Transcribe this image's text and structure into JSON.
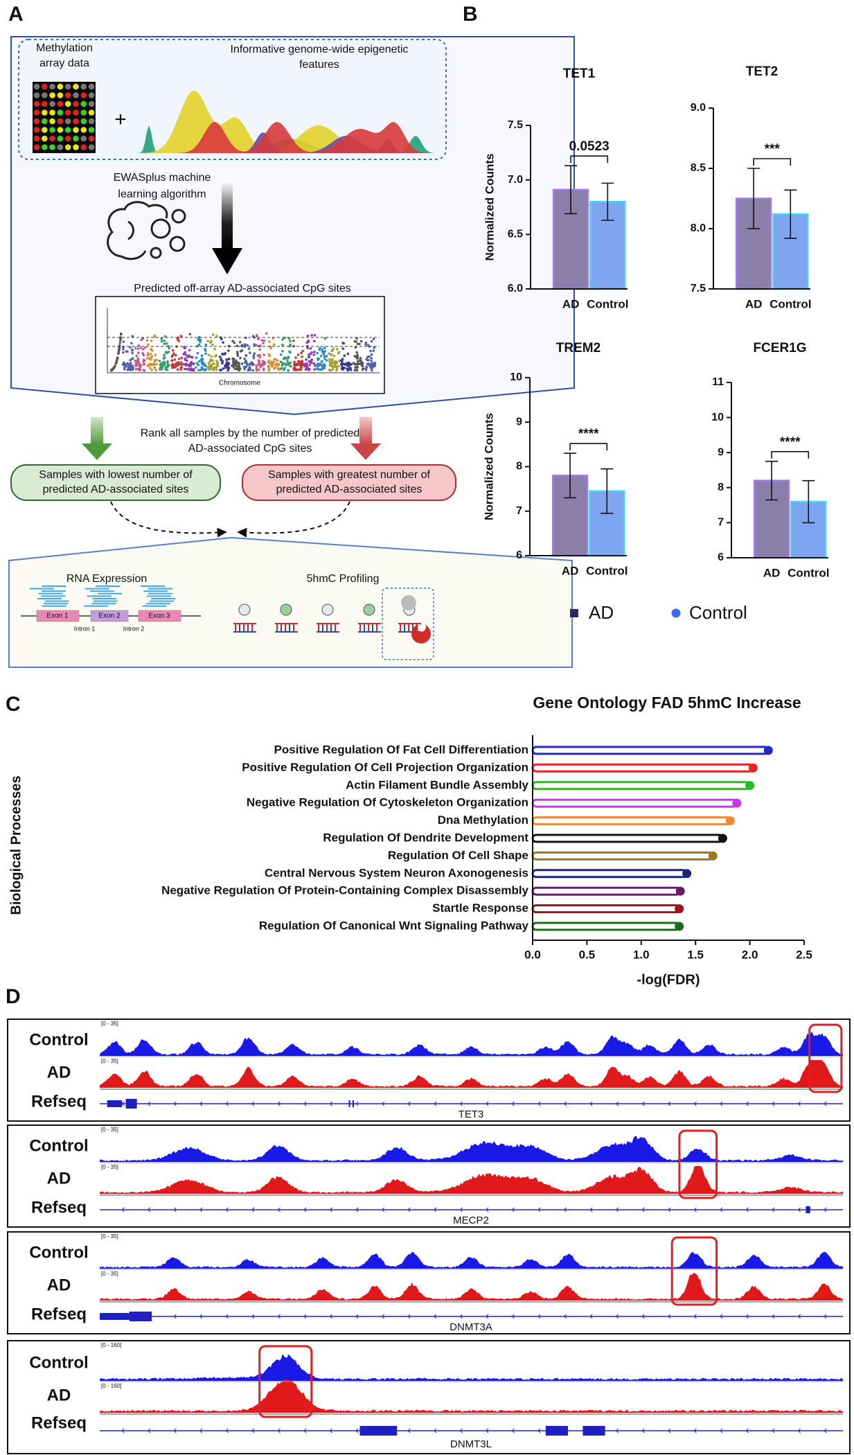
{
  "panel_labels": [
    "A",
    "B",
    "C",
    "D"
  ],
  "workflow": {
    "array_label": [
      "Methylation",
      "array data"
    ],
    "features_label": [
      "Informative genome-wide epigenetic",
      "features"
    ],
    "algorithm_label": [
      "EWASplus machine",
      "learning algorithm"
    ],
    "predicted_label": "Predicted off-array AD-associated CpG sites",
    "manhattan_xlabel": "Chromosome",
    "rank_label": [
      "Rank all samples by the number of predicted",
      "AD-associated CpG sites"
    ],
    "low_group": [
      "Samples with lowest number of",
      "predicted AD-associated sites"
    ],
    "high_group": [
      "Samples with greatest number of",
      "predicted AD-associated sites"
    ],
    "rna_label": "RNA Expression",
    "profiling_label": "5hmC Profiling",
    "exons": [
      "Exon 1",
      "Exon 2",
      "Exon 3"
    ],
    "introns": [
      "Intron 1",
      "Intron 2"
    ]
  },
  "legend": [
    {
      "name": "AD",
      "color": "#2d2766"
    },
    {
      "name": "Control",
      "color": "#3d6af0"
    }
  ],
  "chart_data": [
    {
      "type": "bar",
      "title": "TET1",
      "ylabel": "Normalized Counts",
      "categories": [
        "AD",
        "Control"
      ],
      "values": [
        6.91,
        6.8
      ],
      "errors": [
        0.22,
        0.17
      ],
      "colors": [
        "#8a7fa8",
        "#7fa4f0"
      ],
      "edge_colors": [
        "#a678e8",
        "#3fd9ef"
      ],
      "ylim": [
        6,
        7.5
      ],
      "yticks": [
        {
          "value": 6,
          "label": "6.0"
        },
        6.5,
        {
          "value": 7,
          "label": "7.0"
        },
        7.5
      ],
      "annotation": "0.0523"
    },
    {
      "type": "bar",
      "title": "TET2",
      "categories": [
        "AD",
        "Control"
      ],
      "values": [
        8.25,
        8.12
      ],
      "errors": [
        0.25,
        0.2
      ],
      "colors": [
        "#8a7fa8",
        "#7fa4f0"
      ],
      "edge_colors": [
        "#a678e8",
        "#3fd9ef"
      ],
      "ylim": [
        7.5,
        9
      ],
      "yticks": [
        7.5,
        {
          "value": 8,
          "label": "8.0"
        },
        8.5,
        {
          "value": 9,
          "label": "9.0"
        }
      ],
      "annotation": "***"
    },
    {
      "type": "bar",
      "title": "TREM2",
      "ylabel": "Normalized Counts",
      "categories": [
        "AD",
        "Control"
      ],
      "values": [
        7.8,
        7.45
      ],
      "errors": [
        0.5,
        0.5
      ],
      "colors": [
        "#8a7fa8",
        "#7fa4f0"
      ],
      "edge_colors": [
        "#a678e8",
        "#3fd9ef"
      ],
      "ylim": [
        6,
        10
      ],
      "yticks": [
        6,
        7,
        8,
        9,
        10
      ],
      "annotation": "****"
    },
    {
      "type": "bar",
      "title": "FCER1G",
      "categories": [
        "AD",
        "Control"
      ],
      "values": [
        8.2,
        7.6
      ],
      "errors": [
        0.55,
        0.6
      ],
      "colors": [
        "#8a7fa8",
        "#7fa4f0"
      ],
      "edge_colors": [
        "#a678e8",
        "#3fd9ef"
      ],
      "ylim": [
        6,
        11
      ],
      "yticks": [
        6,
        7,
        8,
        9,
        10,
        11
      ],
      "annotation": "****"
    },
    {
      "type": "lollipop",
      "title": "Gene Ontology FAD 5hmC Increase",
      "ylabel": "Biological Processes",
      "xlabel": "-log(FDR)",
      "categories": [
        "Positive Regulation Of Fat Cell Differentiation",
        "Positive Regulation Of Cell Projection Organization",
        "Actin Filament Bundle Assembly",
        "Negative Regulation Of Cytoskeleton Organization",
        "Dna Methylation",
        "Regulation Of Dendrite Development",
        "Regulation Of Cell Shape",
        "Central Nervous System Neuron Axonogenesis",
        "Negative Regulation Of Protein-Containing Complex Disassembly",
        "Startle Response",
        "Regulation Of Canonical Wnt Signaling Pathway"
      ],
      "values": [
        2.17,
        2.03,
        2.0,
        1.88,
        1.82,
        1.75,
        1.66,
        1.42,
        1.36,
        1.35,
        1.35
      ],
      "colors": [
        "#2525cc",
        "#ee2222",
        "#22bb22",
        "#cc33ee",
        "#ef8a33",
        "#111111",
        "#a0722a",
        "#1a237e",
        "#6a1b6a",
        "#a01020",
        "#1b6b1b"
      ],
      "xlim": [
        0,
        2.5
      ],
      "xticks": [
        {
          "value": 0,
          "label": "0.0"
        },
        0.5,
        {
          "value": 1,
          "label": "1.0"
        },
        1.5,
        {
          "value": 2,
          "label": "2.0"
        },
        2.5
      ]
    }
  ],
  "tracks": {
    "row_labels": [
      "Control",
      "AD",
      "Refseq"
    ],
    "panels": [
      {
        "gene": "TET3",
        "range": "[0 - 35]"
      },
      {
        "gene": "MECP2",
        "range": "[0 - 35]"
      },
      {
        "gene": "DNMT3A",
        "range": "[0 - 35]"
      },
      {
        "gene": "DNMT3L",
        "range": "[0 - 160]"
      }
    ]
  }
}
